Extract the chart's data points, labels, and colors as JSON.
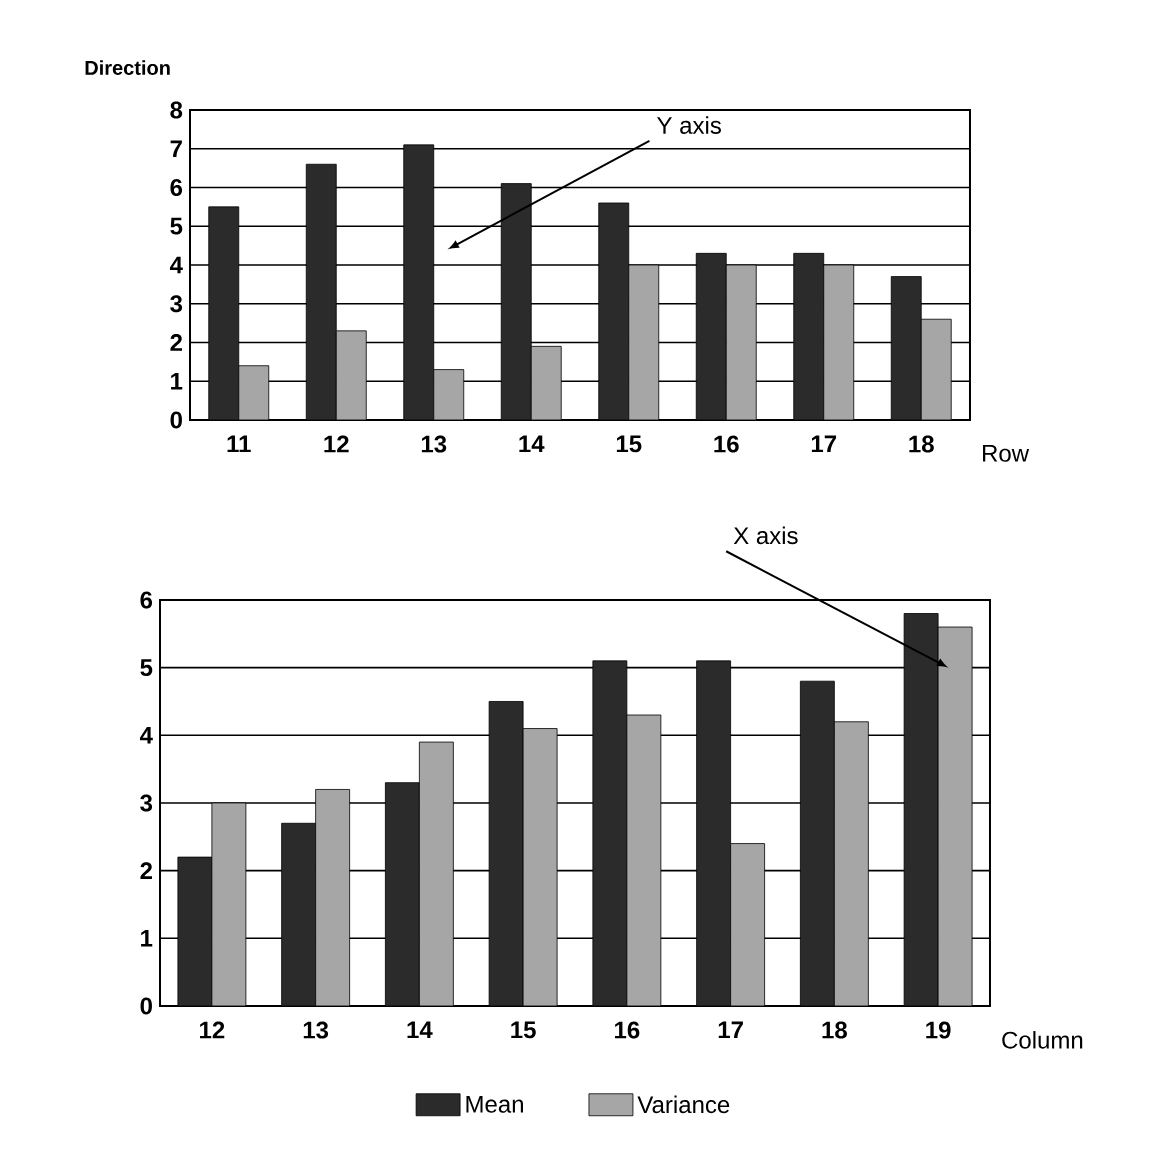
{
  "chart_data": [
    {
      "type": "bar",
      "ylabel": "Direction",
      "xlabel": "Row",
      "categories": [
        "11",
        "12",
        "13",
        "14",
        "15",
        "16",
        "17",
        "18"
      ],
      "series": [
        {
          "color": "#2b2b2b",
          "values": [
            5.5,
            6.6,
            7.1,
            6.1,
            5.6,
            4.3,
            4.3,
            3.7
          ]
        },
        {
          "color": "#a6a6a6",
          "values": [
            1.4,
            2.3,
            1.3,
            1.9,
            4.0,
            4.0,
            4.0,
            2.6
          ]
        }
      ],
      "ylim": [
        0,
        8
      ],
      "yticks": [
        0,
        1,
        2,
        3,
        4,
        5,
        6,
        7,
        8
      ],
      "grid": "y",
      "annotations": [
        "Y axis"
      ]
    },
    {
      "type": "bar",
      "xlabel": "Column",
      "categories": [
        "12",
        "13",
        "14",
        "15",
        "16",
        "17",
        "18",
        "19"
      ],
      "series": [
        {
          "name": "Mean",
          "color": "#2b2b2b",
          "values": [
            2.2,
            2.7,
            3.3,
            4.5,
            5.1,
            5.1,
            4.8,
            5.8
          ]
        },
        {
          "name": "Variance",
          "color": "#a6a6a6",
          "values": [
            3.0,
            3.2,
            3.9,
            4.1,
            4.3,
            2.4,
            4.2,
            5.6
          ]
        }
      ],
      "ylim": [
        0,
        6
      ],
      "yticks": [
        0,
        1,
        2,
        3,
        4,
        5,
        6
      ],
      "grid": "y",
      "legend": "bottom",
      "annotations": [
        {
          "text": "X axis",
          "x": "19",
          "y": 5.0
        }
      ]
    }
  ]
}
